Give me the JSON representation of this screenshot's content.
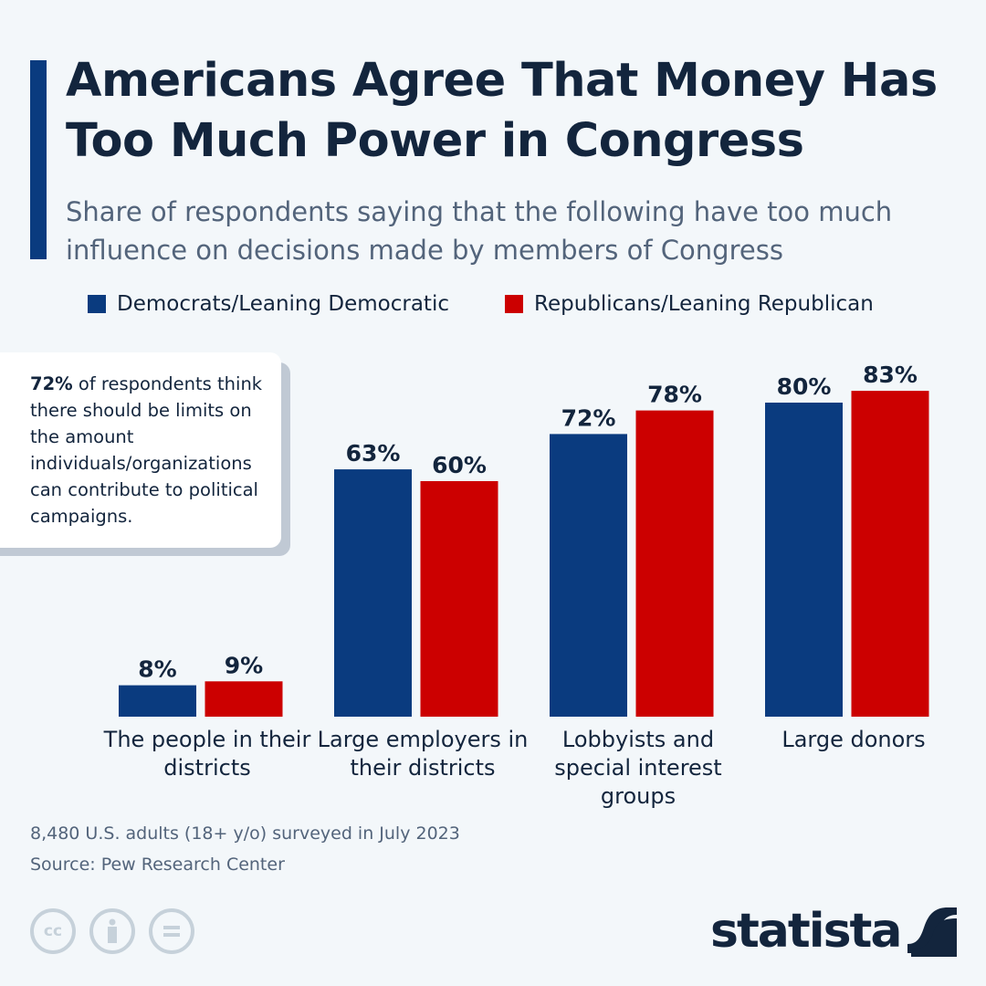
{
  "header": {
    "title": "Americans Agree That Money Has Too Much Power in Congress",
    "subtitle": "Share of respondents saying that the following have too much influence on decisions made by members of Congress"
  },
  "note": {
    "highlight": "72%",
    "text": " of respondents think there should be limits on the amount individuals/organizations can contribute to political campaigns."
  },
  "footer": {
    "survey": "8,480 U.S. adults (18+ y/o) surveyed in July 2023",
    "source": "Source: Pew Research Center",
    "brand": "statista",
    "license_icons": [
      "cc-icon",
      "attribution-icon",
      "no-derivatives-icon"
    ]
  },
  "colors": {
    "democrats": "#0a3b7f",
    "republicans": "#cc0000",
    "text": "#13253d"
  },
  "chart_data": {
    "type": "bar",
    "categories": [
      "The people in their districts",
      "Large employers in their districts",
      "Lobbyists and special interest groups",
      "Large donors"
    ],
    "series": [
      {
        "name": "Democrats/Leaning Democratic",
        "values": [
          8,
          63,
          72,
          80
        ],
        "labels": [
          "8%",
          "63%",
          "72%",
          "80%"
        ]
      },
      {
        "name": "Republicans/Leaning Republican",
        "values": [
          9,
          60,
          78,
          83
        ],
        "labels": [
          "9%",
          "60%",
          "78%",
          "83%"
        ]
      }
    ],
    "unit": "%",
    "ylim": [
      0,
      100
    ],
    "grid": false,
    "legend": "top-left"
  }
}
